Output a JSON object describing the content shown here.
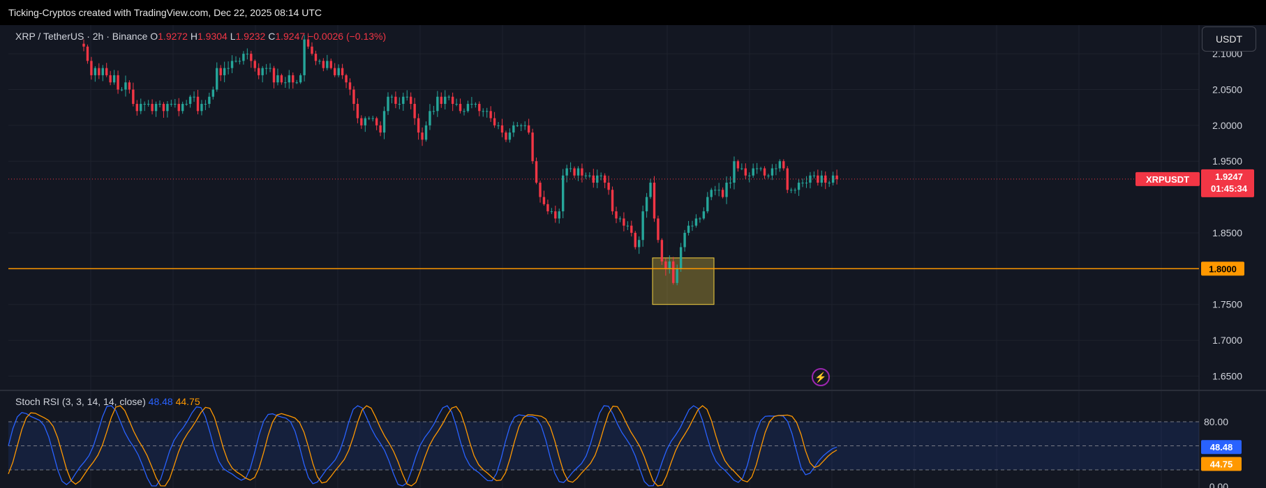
{
  "header": {
    "title": "Ticking-Cryptos created with TradingView.com, Dec 22, 2025 08:14 UTC"
  },
  "legend": {
    "symbol": "XRP / TetherUS · 2h · Binance",
    "o_label": "O",
    "o": "1.9272",
    "h_label": "H",
    "h": "1.9304",
    "l_label": "L",
    "l": "1.9232",
    "c_label": "C",
    "c": "1.9247",
    "change": "−0.0026 (−0.13%)"
  },
  "currency_button": "USDT",
  "price_tag": {
    "symbol": "XRPUSDT",
    "price": "1.9247",
    "countdown": "01:45:34"
  },
  "level_tag": "1.8000",
  "stoch": {
    "label": "Stoch RSI (3, 3, 14, 14, close)",
    "k": "48.48",
    "d": "44.75"
  },
  "colors": {
    "background": "#131722",
    "up": "#26a69a",
    "down": "#f23645",
    "level": "#ff9800",
    "zone": "#f5d03f",
    "k_line": "#2962ff",
    "d_line": "#ff9800"
  },
  "chart_data": {
    "type": "candlestick",
    "symbol": "XRPUSDT",
    "timeframe": "2h",
    "y_ticks": [
      "2.1000",
      "2.0500",
      "2.0000",
      "1.9500",
      "1.8500",
      "1.7500",
      "1.7000",
      "1.6500"
    ],
    "ylim": [
      1.63,
      2.14
    ],
    "candles_close": [
      2.11,
      2.09,
      2.07,
      2.08,
      2.07,
      2.08,
      2.07,
      2.06,
      2.07,
      2.05,
      2.05,
      2.06,
      2.05,
      2.03,
      2.02,
      2.03,
      2.03,
      2.03,
      2.02,
      2.03,
      2.03,
      2.02,
      2.03,
      2.03,
      2.03,
      2.02,
      2.03,
      2.03,
      2.04,
      2.04,
      2.02,
      2.03,
      2.03,
      2.04,
      2.05,
      2.08,
      2.07,
      2.08,
      2.08,
      2.09,
      2.09,
      2.09,
      2.1,
      2.1,
      2.09,
      2.08,
      2.07,
      2.08,
      2.08,
      2.08,
      2.06,
      2.07,
      2.06,
      2.06,
      2.07,
      2.06,
      2.06,
      2.07,
      2.12,
      2.11,
      2.1,
      2.09,
      2.09,
      2.08,
      2.09,
      2.08,
      2.07,
      2.08,
      2.07,
      2.06,
      2.05,
      2.03,
      2.01,
      2.0,
      2.01,
      2.01,
      2.01,
      2.0,
      1.99,
      2.02,
      2.04,
      2.04,
      2.03,
      2.03,
      2.04,
      2.04,
      2.03,
      2.01,
      1.99,
      1.98,
      2.0,
      2.02,
      2.02,
      2.04,
      2.03,
      2.04,
      2.04,
      2.03,
      2.03,
      2.02,
      2.02,
      2.03,
      2.03,
      2.03,
      2.02,
      2.02,
      2.02,
      2.01,
      2.0,
      2.0,
      1.99,
      1.98,
      1.99,
      2.0,
      2.0,
      2.0,
      2.0,
      1.99,
      1.95,
      1.92,
      1.9,
      1.89,
      1.88,
      1.88,
      1.87,
      1.88,
      1.93,
      1.94,
      1.94,
      1.93,
      1.94,
      1.93,
      1.93,
      1.93,
      1.92,
      1.93,
      1.93,
      1.92,
      1.91,
      1.88,
      1.87,
      1.87,
      1.86,
      1.86,
      1.85,
      1.83,
      1.84,
      1.88,
      1.9,
      1.92,
      1.87,
      1.84,
      1.81,
      1.8,
      1.81,
      1.78,
      1.8,
      1.83,
      1.85,
      1.86,
      1.86,
      1.87,
      1.87,
      1.88,
      1.9,
      1.91,
      1.91,
      1.91,
      1.9,
      1.92,
      1.92,
      1.95,
      1.94,
      1.94,
      1.93,
      1.93,
      1.94,
      1.94,
      1.94,
      1.93,
      1.93,
      1.94,
      1.94,
      1.95,
      1.94,
      1.91,
      1.91,
      1.91,
      1.92,
      1.92,
      1.92,
      1.93,
      1.93,
      1.92,
      1.93,
      1.92,
      1.92,
      1.93,
      1.925
    ],
    "horizontal_level": 1.8,
    "zone": {
      "from": 1.75,
      "to": 1.815
    },
    "stoch_rsi": {
      "y_ticks": [
        "80.00",
        "0.00"
      ],
      "bands": [
        80,
        50,
        20
      ],
      "k_last": 48.48,
      "d_last": 44.75
    }
  }
}
